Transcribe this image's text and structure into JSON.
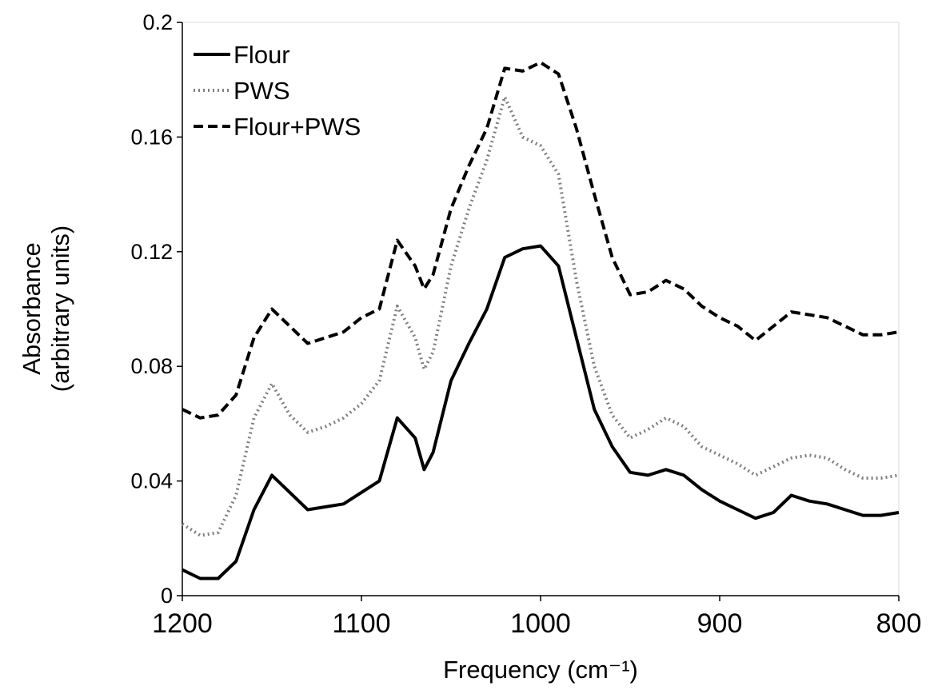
{
  "chart_data": {
    "type": "line",
    "xlabel": "Frequency (cm⁻¹)",
    "ylabel": [
      "Absorbance",
      "(arbitrary units)"
    ],
    "x": [
      1200,
      1190,
      1180,
      1170,
      1160,
      1150,
      1140,
      1130,
      1120,
      1110,
      1100,
      1090,
      1080,
      1070,
      1065,
      1060,
      1050,
      1040,
      1030,
      1020,
      1010,
      1000,
      990,
      980,
      970,
      960,
      950,
      940,
      930,
      920,
      910,
      900,
      890,
      880,
      870,
      860,
      850,
      840,
      830,
      820,
      810,
      800
    ],
    "xlim": [
      1200,
      800
    ],
    "xticks": [
      1200,
      1100,
      1000,
      900,
      800
    ],
    "ylim": [
      0,
      0.2
    ],
    "yticks": [
      0,
      0.04,
      0.08,
      0.12,
      0.16,
      0.2
    ],
    "legend": "upper left",
    "series": [
      {
        "name": "Flour",
        "color": "#000000",
        "dash": "solid",
        "values": [
          0.009,
          0.006,
          0.006,
          0.012,
          0.03,
          0.042,
          0.036,
          0.03,
          0.031,
          0.032,
          0.036,
          0.04,
          0.062,
          0.055,
          0.044,
          0.05,
          0.075,
          0.088,
          0.1,
          0.118,
          0.121,
          0.122,
          0.115,
          0.09,
          0.065,
          0.052,
          0.043,
          0.042,
          0.044,
          0.042,
          0.037,
          0.033,
          0.03,
          0.027,
          0.029,
          0.035,
          0.033,
          0.032,
          0.03,
          0.028,
          0.028,
          0.029
        ]
      },
      {
        "name": "PWS",
        "color": "#808080",
        "dash": "dotted",
        "values": [
          0.025,
          0.021,
          0.022,
          0.035,
          0.062,
          0.074,
          0.063,
          0.057,
          0.059,
          0.062,
          0.067,
          0.075,
          0.101,
          0.09,
          0.079,
          0.085,
          0.115,
          0.135,
          0.152,
          0.174,
          0.16,
          0.157,
          0.147,
          0.11,
          0.08,
          0.063,
          0.055,
          0.058,
          0.062,
          0.059,
          0.052,
          0.049,
          0.046,
          0.042,
          0.045,
          0.048,
          0.049,
          0.048,
          0.044,
          0.041,
          0.041,
          0.042
        ]
      },
      {
        "name": "Flour+PWS",
        "color": "#000000",
        "dash": "dashed",
        "values": [
          0.065,
          0.062,
          0.063,
          0.07,
          0.09,
          0.1,
          0.094,
          0.088,
          0.09,
          0.092,
          0.097,
          0.1,
          0.124,
          0.115,
          0.107,
          0.112,
          0.135,
          0.15,
          0.163,
          0.184,
          0.183,
          0.186,
          0.182,
          0.163,
          0.14,
          0.118,
          0.105,
          0.106,
          0.11,
          0.107,
          0.101,
          0.097,
          0.094,
          0.089,
          0.094,
          0.099,
          0.098,
          0.097,
          0.094,
          0.091,
          0.091,
          0.092
        ]
      }
    ]
  }
}
